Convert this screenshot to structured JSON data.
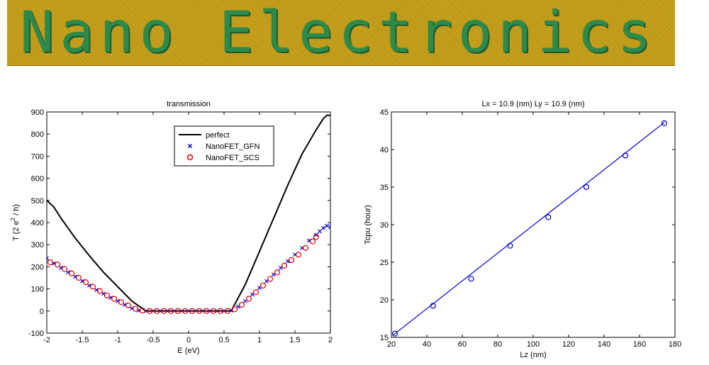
{
  "banner": {
    "title": "Nano Electronics"
  },
  "chart_data": [
    {
      "type": "line",
      "title": "transmission",
      "xlabel": "E (eV)",
      "ylabel_prefix": "T (2 e",
      "ylabel_sup": "2",
      "ylabel_suffix": " / h)",
      "xlim": [
        -2,
        2
      ],
      "ylim": [
        -100,
        900
      ],
      "xticks": [
        "-2",
        "-1.5",
        "-1",
        "-0.5",
        "0",
        "0.5",
        "1",
        "1.5",
        "2"
      ],
      "yticks": [
        "-100",
        "0",
        "100",
        "200",
        "300",
        "400",
        "500",
        "600",
        "700",
        "800",
        "900"
      ],
      "grid": false,
      "legend_position": "top-center",
      "series": [
        {
          "name": "perfect",
          "style": "line",
          "color": "#000000",
          "x": [
            -2.0,
            -1.9,
            -1.8,
            -1.6,
            -1.4,
            -1.2,
            -1.0,
            -0.8,
            -0.6,
            0.0,
            0.6,
            0.8,
            1.0,
            1.2,
            1.4,
            1.6,
            1.8,
            1.9,
            1.95,
            2.0
          ],
          "y": [
            500,
            470,
            420,
            330,
            250,
            175,
            110,
            45,
            0,
            0,
            0,
            120,
            270,
            420,
            570,
            710,
            820,
            870,
            885,
            885
          ]
        },
        {
          "name": "NanoFET_GFN",
          "style": "marker-x",
          "color": "#0000cc",
          "x": [
            -2.0,
            -1.9,
            -1.8,
            -1.7,
            -1.6,
            -1.5,
            -1.4,
            -1.3,
            -1.2,
            -1.1,
            -1.0,
            -0.9,
            -0.8,
            -0.7,
            -0.6,
            -0.5,
            -0.4,
            -0.3,
            -0.2,
            -0.1,
            0.0,
            0.1,
            0.2,
            0.3,
            0.4,
            0.5,
            0.6,
            0.7,
            0.8,
            0.9,
            1.0,
            1.1,
            1.2,
            1.3,
            1.4,
            1.5,
            1.6,
            1.7,
            1.8,
            1.85,
            1.9,
            1.95,
            2.0
          ],
          "y": [
            238,
            215,
            195,
            175,
            155,
            135,
            115,
            95,
            78,
            60,
            45,
            28,
            12,
            2,
            0,
            0,
            0,
            0,
            0,
            0,
            0,
            0,
            0,
            0,
            0,
            0,
            2,
            20,
            45,
            75,
            105,
            135,
            165,
            195,
            225,
            255,
            285,
            318,
            345,
            360,
            375,
            385,
            380
          ]
        },
        {
          "name": "NanoFET_SCS",
          "style": "marker-circle",
          "color": "#dd0000",
          "x": [
            -1.95,
            -1.85,
            -1.75,
            -1.65,
            -1.55,
            -1.45,
            -1.35,
            -1.25,
            -1.15,
            -1.05,
            -0.95,
            -0.85,
            -0.75,
            -0.65,
            -0.55,
            -0.45,
            -0.35,
            -0.25,
            -0.15,
            -0.05,
            0.05,
            0.15,
            0.25,
            0.35,
            0.45,
            0.55,
            0.65,
            0.75,
            0.85,
            0.95,
            1.05,
            1.15,
            1.25,
            1.35,
            1.45,
            1.55,
            1.65,
            1.75,
            1.8
          ],
          "y": [
            220,
            210,
            190,
            170,
            150,
            130,
            110,
            90,
            70,
            55,
            40,
            25,
            10,
            2,
            0,
            0,
            0,
            0,
            0,
            0,
            0,
            0,
            0,
            0,
            0,
            0,
            8,
            28,
            55,
            85,
            115,
            145,
            175,
            205,
            230,
            255,
            285,
            315,
            335
          ]
        }
      ]
    },
    {
      "type": "line",
      "title": "Lx = 10.9 (nm)    Ly = 10.9 (nm)",
      "xlabel": "Lz (nm)",
      "ylabel": "Tcpu (hour)",
      "xlim": [
        20,
        180
      ],
      "ylim": [
        15,
        45
      ],
      "xticks": [
        "20",
        "40",
        "60",
        "80",
        "100",
        "120",
        "140",
        "160",
        "180"
      ],
      "yticks": [
        "15",
        "20",
        "25",
        "30",
        "35",
        "40",
        "45"
      ],
      "grid": false,
      "series": [
        {
          "name": "",
          "style": "line",
          "color": "#0000cc",
          "x": [
            21,
            174
          ],
          "y": [
            15.3,
            43.6
          ]
        },
        {
          "name": "",
          "style": "marker-circle",
          "color": "#0000cc",
          "x": [
            22,
            43.5,
            65,
            87,
            108.5,
            130,
            152,
            174
          ],
          "y": [
            15.5,
            19.2,
            22.8,
            27.2,
            31.0,
            35.0,
            39.2,
            43.5
          ]
        }
      ]
    }
  ]
}
